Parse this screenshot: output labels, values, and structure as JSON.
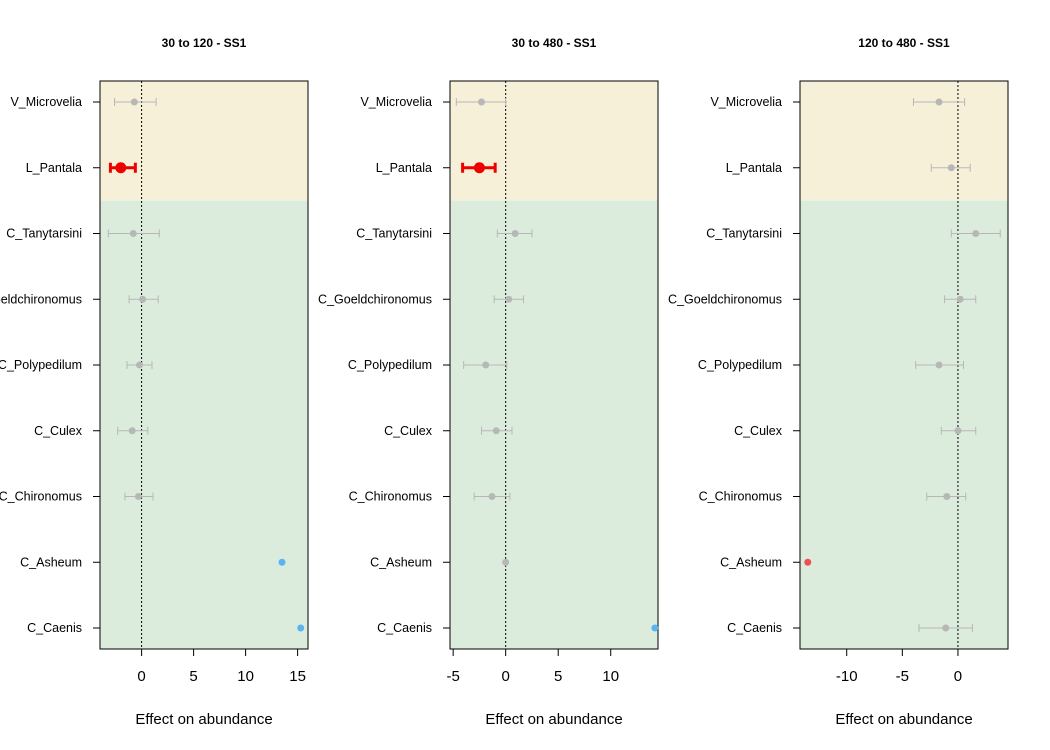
{
  "chart_data": [
    {
      "type": "forest",
      "title": "30 to 120 - SS1",
      "xlabel": "Effect on abundance",
      "xlim": [
        -4,
        16
      ],
      "xticks": [
        0,
        5,
        10,
        15
      ],
      "zero_line": true,
      "categories": [
        "V_Microvelia",
        "L_Pantala",
        "C_Tanytarsini",
        "C_Goeldchironomus",
        "C_Polypedilum",
        "C_Culex",
        "C_Chironomus",
        "C_Asheum",
        "C_Caenis"
      ],
      "groups": [
        {
          "rows": [
            "V_Microvelia",
            "L_Pantala"
          ],
          "color": "#f6f0d8"
        },
        {
          "rows": [
            "C_Tanytarsini",
            "C_Goeldchironomus",
            "C_Polypedilum",
            "C_Culex",
            "C_Chironomus",
            "C_Asheum",
            "C_Caenis"
          ],
          "color": "#dcecdc"
        }
      ],
      "points": [
        {
          "label": "V_Microvelia",
          "estimate": -0.7,
          "lower": -2.6,
          "upper": 1.4,
          "status": "ns"
        },
        {
          "label": "L_Pantala",
          "estimate": -2.0,
          "lower": -3.0,
          "upper": -0.6,
          "status": "negative"
        },
        {
          "label": "C_Tanytarsini",
          "estimate": -0.8,
          "lower": -3.2,
          "upper": 1.7,
          "status": "ns"
        },
        {
          "label": "C_Goeldchironomus",
          "estimate": 0.1,
          "lower": -1.2,
          "upper": 1.6,
          "status": "ns"
        },
        {
          "label": "C_Polypedilum",
          "estimate": -0.2,
          "lower": -1.4,
          "upper": 1.0,
          "status": "ns"
        },
        {
          "label": "C_Culex",
          "estimate": -0.9,
          "lower": -2.3,
          "upper": 0.6,
          "status": "ns"
        },
        {
          "label": "C_Chironomus",
          "estimate": -0.3,
          "lower": -1.6,
          "upper": 1.1,
          "status": "ns"
        },
        {
          "label": "C_Asheum",
          "estimate": 13.5,
          "lower": null,
          "upper": null,
          "status": "positive"
        },
        {
          "label": "C_Caenis",
          "estimate": 15.3,
          "lower": null,
          "upper": null,
          "status": "positive"
        }
      ]
    },
    {
      "type": "forest",
      "title": "30 to 480 - SS1",
      "xlabel": "Effect on abundance",
      "xlim": [
        -5.3,
        14.5
      ],
      "xticks": [
        -5,
        0,
        5,
        10
      ],
      "zero_line": true,
      "categories": [
        "V_Microvelia",
        "L_Pantala",
        "C_Tanytarsini",
        "C_Goeldchironomus",
        "C_Polypedilum",
        "C_Culex",
        "C_Chironomus",
        "C_Asheum",
        "C_Caenis"
      ],
      "groups": [
        {
          "rows": [
            "V_Microvelia",
            "L_Pantala"
          ],
          "color": "#f6f0d8"
        },
        {
          "rows": [
            "C_Tanytarsini",
            "C_Goeldchironomus",
            "C_Polypedilum",
            "C_Culex",
            "C_Chironomus",
            "C_Asheum",
            "C_Caenis"
          ],
          "color": "#dcecdc"
        }
      ],
      "points": [
        {
          "label": "V_Microvelia",
          "estimate": -2.3,
          "lower": -4.7,
          "upper": 0.0,
          "status": "ns"
        },
        {
          "label": "L_Pantala",
          "estimate": -2.5,
          "lower": -4.1,
          "upper": -1.0,
          "status": "negative"
        },
        {
          "label": "C_Tanytarsini",
          "estimate": 0.9,
          "lower": -0.8,
          "upper": 2.5,
          "status": "ns"
        },
        {
          "label": "C_Goeldchironomus",
          "estimate": 0.3,
          "lower": -1.1,
          "upper": 1.7,
          "status": "ns"
        },
        {
          "label": "C_Polypedilum",
          "estimate": -1.9,
          "lower": -4.0,
          "upper": 0.1,
          "status": "ns"
        },
        {
          "label": "C_Culex",
          "estimate": -0.9,
          "lower": -2.3,
          "upper": 0.6,
          "status": "ns"
        },
        {
          "label": "C_Chironomus",
          "estimate": -1.3,
          "lower": -3.0,
          "upper": 0.4,
          "status": "ns"
        },
        {
          "label": "C_Asheum",
          "estimate": 0.0,
          "lower": null,
          "upper": null,
          "status": "ns"
        },
        {
          "label": "C_Caenis",
          "estimate": 14.2,
          "lower": null,
          "upper": null,
          "status": "positive"
        }
      ]
    },
    {
      "type": "forest",
      "title": "120 to 480 - SS1",
      "xlabel": "Effect on abundance",
      "xlim": [
        -14.2,
        4.5
      ],
      "xticks": [
        -10,
        -5,
        0
      ],
      "zero_line": true,
      "categories": [
        "V_Microvelia",
        "L_Pantala",
        "C_Tanytarsini",
        "C_Goeldchironomus",
        "C_Polypedilum",
        "C_Culex",
        "C_Chironomus",
        "C_Asheum",
        "C_Caenis"
      ],
      "groups": [
        {
          "rows": [
            "V_Microvelia",
            "L_Pantala"
          ],
          "color": "#f6f0d8"
        },
        {
          "rows": [
            "C_Tanytarsini",
            "C_Goeldchironomus",
            "C_Polypedilum",
            "C_Culex",
            "C_Chironomus",
            "C_Asheum",
            "C_Caenis"
          ],
          "color": "#dcecdc"
        }
      ],
      "points": [
        {
          "label": "V_Microvelia",
          "estimate": -1.7,
          "lower": -4.0,
          "upper": 0.6,
          "status": "ns"
        },
        {
          "label": "L_Pantala",
          "estimate": -0.6,
          "lower": -2.4,
          "upper": 1.1,
          "status": "ns"
        },
        {
          "label": "C_Tanytarsini",
          "estimate": 1.6,
          "lower": -0.6,
          "upper": 3.8,
          "status": "ns"
        },
        {
          "label": "C_Goeldchironomus",
          "estimate": 0.2,
          "lower": -1.2,
          "upper": 1.6,
          "status": "ns"
        },
        {
          "label": "C_Polypedilum",
          "estimate": -1.7,
          "lower": -3.8,
          "upper": 0.5,
          "status": "ns"
        },
        {
          "label": "C_Culex",
          "estimate": 0.0,
          "lower": -1.5,
          "upper": 1.6,
          "status": "ns"
        },
        {
          "label": "C_Chironomus",
          "estimate": -1.0,
          "lower": -2.8,
          "upper": 0.7,
          "status": "ns"
        },
        {
          "label": "C_Asheum",
          "estimate": -13.5,
          "lower": null,
          "upper": null,
          "status": "negative_light"
        },
        {
          "label": "C_Caenis",
          "estimate": -1.1,
          "lower": -3.5,
          "upper": 1.3,
          "status": "ns"
        }
      ]
    }
  ],
  "colors": {
    "ns": "#b7b7b7",
    "negative": "#ee0000",
    "negative_light": "#f05050",
    "positive": "#5ab4f0",
    "zero_line": "#000000"
  }
}
